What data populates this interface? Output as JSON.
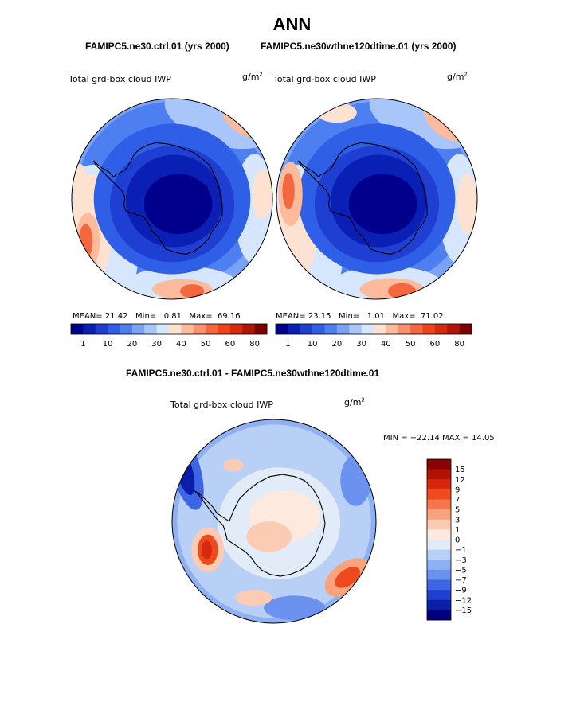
{
  "page_title": "ANN",
  "panels": [
    {
      "case_title": "FAMIPC5.ne30.ctrl.01 (yrs 2000)",
      "field_label": "Total grd-box cloud IWP",
      "units": "g/m",
      "units_exp": "2",
      "stats": {
        "mean_label": "MEAN=",
        "mean": "21.42",
        "min_label": "Min=",
        "min": "0.81",
        "max_label": "Max=",
        "max": "69.16"
      }
    },
    {
      "case_title": "FAMIPC5.ne30wthne120dtime.01 (yrs 2000)",
      "field_label": "Total grd-box cloud IWP",
      "units": "g/m",
      "units_exp": "2",
      "stats": {
        "mean_label": "MEAN=",
        "mean": "23.15",
        "min_label": "Min=",
        "min": "1.01",
        "max_label": "Max=",
        "max": "71.02"
      }
    }
  ],
  "diff_panel": {
    "case_title": "FAMIPC5.ne30.ctrl.01 - FAMIPC5.ne30wthne120dtime.01",
    "field_label": "Total grd-box cloud IWP",
    "units": "g/m",
    "units_exp": "2",
    "minmax_text": "MIN = −22.14 MAX =   14.05"
  },
  "chart_data": [
    {
      "type": "heatmap",
      "projection": "south polar stereographic",
      "title": "FAMIPC5.ne30.ctrl.01 (yrs 2000)",
      "variable": "Total grd-box cloud IWP",
      "units": "g/m2",
      "mean": 21.42,
      "min": 0.81,
      "max": 69.16,
      "colorbar_levels": [
        1,
        10,
        20,
        30,
        40,
        50,
        60,
        80
      ],
      "colorbar_tick_labels": [
        "1",
        "10",
        "20",
        "30",
        "40",
        "50",
        "60",
        "80"
      ],
      "colorbar_orientation": "horizontal"
    },
    {
      "type": "heatmap",
      "projection": "south polar stereographic",
      "title": "FAMIPC5.ne30wthne120dtime.01 (yrs 2000)",
      "variable": "Total grd-box cloud IWP",
      "units": "g/m2",
      "mean": 23.15,
      "min": 1.01,
      "max": 71.02,
      "colorbar_levels": [
        1,
        10,
        20,
        30,
        40,
        50,
        60,
        80
      ],
      "colorbar_tick_labels": [
        "1",
        "10",
        "20",
        "30",
        "40",
        "50",
        "60",
        "80"
      ],
      "colorbar_orientation": "horizontal"
    },
    {
      "type": "heatmap",
      "projection": "south polar stereographic",
      "title": "FAMIPC5.ne30.ctrl.01 - FAMIPC5.ne30wthne120dtime.01",
      "variable": "Total grd-box cloud IWP",
      "units": "g/m2",
      "min": -22.14,
      "max": 14.05,
      "colorbar_levels": [
        15,
        12,
        9,
        7,
        5,
        3,
        1,
        0,
        -1,
        -3,
        -5,
        -7,
        -9,
        -12,
        -15
      ],
      "colorbar_tick_labels": [
        "15",
        "12",
        "9",
        "7",
        "5",
        "3",
        "1",
        "0",
        "−1",
        "−3",
        "−5",
        "−7",
        "−9",
        "−12",
        "−15"
      ],
      "colorbar_orientation": "vertical"
    }
  ],
  "palettes": {
    "abs_colors": [
      "#00008c",
      "#0a1fb4",
      "#1e3fd2",
      "#2e5fe6",
      "#4d7ff0",
      "#7aa3f5",
      "#a8c6fa",
      "#d6e6fc",
      "#fde2d2",
      "#fbbb9c",
      "#f8916c",
      "#f4683f",
      "#ee4419",
      "#d52a0c",
      "#b01508",
      "#7d0000"
    ],
    "diff_colors": [
      "#8b0000",
      "#b01204",
      "#d5280c",
      "#ef4a1e",
      "#f6764a",
      "#f9a27e",
      "#fccbb4",
      "#fde9de",
      "#e2ecf8",
      "#b9d0f6",
      "#8fb0f2",
      "#6a92ee",
      "#3e66e4",
      "#1f3fd0",
      "#0a1fa8",
      "#00007e"
    ]
  }
}
